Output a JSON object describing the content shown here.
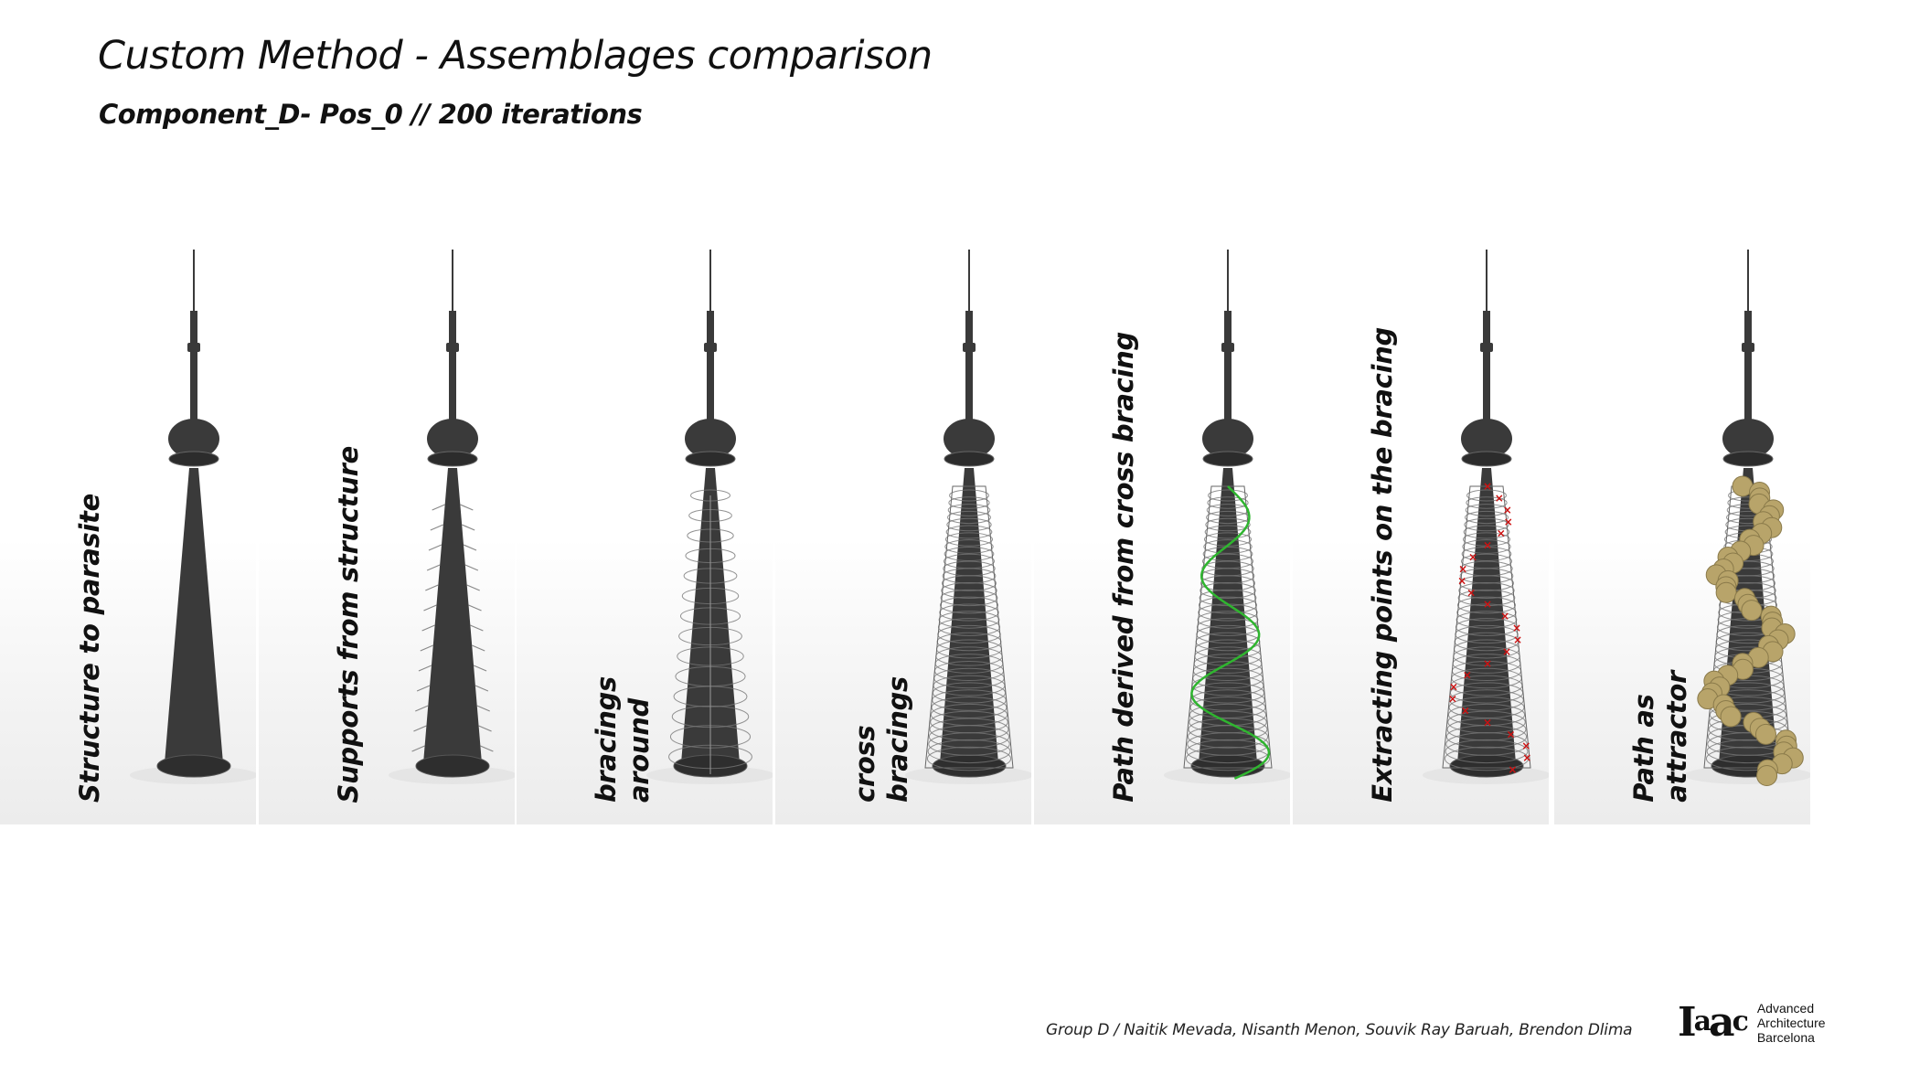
{
  "header": {
    "title": "Custom Method - Assemblages comparison",
    "subtitle": "Component_D- Pos_0 // 200 iterations"
  },
  "panels": [
    {
      "label": "Structure to parasite",
      "variant": "plain"
    },
    {
      "label": "Supports from structure",
      "variant": "supports"
    },
    {
      "label": "bracings\naround",
      "variant": "rings"
    },
    {
      "label": "cross\nbracings",
      "variant": "cross"
    },
    {
      "label": "Path derived from cross bracing",
      "variant": "path"
    },
    {
      "label": "Extracting points on the bracing",
      "variant": "points"
    },
    {
      "label": "Path as\nattractor",
      "variant": "attractor"
    }
  ],
  "colors": {
    "tower": "#3a3a3a",
    "path": "#2fb52f",
    "points": "#cc1111",
    "attractor": "#b8a46a"
  },
  "footer": {
    "credits": "Group D / Naitik Mevada, Nisanth Menon, Souvik Ray Baruah, Brendon Dlima",
    "logo_mark": "Iaac",
    "logo_text": "Advanced\nArchitecture\nBarcelona"
  }
}
